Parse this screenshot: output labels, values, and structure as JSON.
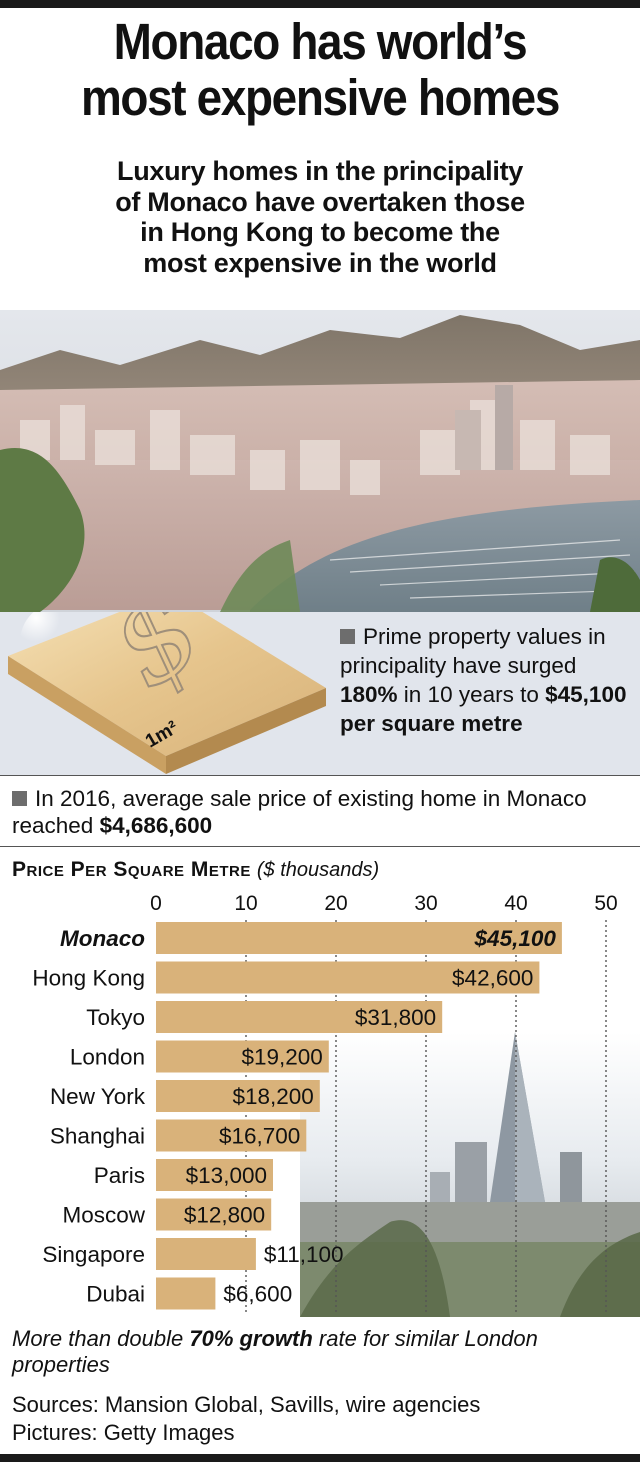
{
  "headline": {
    "title_line1": "Monaco has world’s",
    "title_line2": "most expensive homes",
    "subtitle_line1": "Luxury homes in the principality",
    "subtitle_line2": "of Monaco have overtaken those",
    "subtitle_line3": "in Hong Kong to become the",
    "subtitle_line4": "most expensive in the world"
  },
  "graphic": {
    "tile_label": "1m²",
    "symbol": "$"
  },
  "facts": {
    "fact1_a": "Prime property values in principality have surged ",
    "fact1_b": "180%",
    "fact1_c": " in 10 years to ",
    "fact1_d": "$45,100 per square metre",
    "fact2_a": "In 2016, average sale price of existing home in Monaco reached ",
    "fact2_b": "$4,686,600"
  },
  "chart_data": {
    "type": "bar",
    "orientation": "horizontal",
    "title": "Price Per Square Metre",
    "unit_label": "($ thousands)",
    "xlim": [
      0,
      50
    ],
    "ticks": [
      0,
      10,
      20,
      30,
      40,
      50
    ],
    "categories": [
      "Monaco",
      "Hong Kong",
      "Tokyo",
      "London",
      "New York",
      "Shanghai",
      "Paris",
      "Moscow",
      "Singapore",
      "Dubai"
    ],
    "values": [
      45.1,
      42.6,
      31.8,
      19.2,
      18.2,
      16.7,
      13.0,
      12.8,
      11.1,
      6.6
    ],
    "labels": [
      "$45,100",
      "$42,600",
      "$31,800",
      "$19,200",
      "$18,200",
      "$16,700",
      "$13,000",
      "$12,800",
      "$11,100",
      "$6,600"
    ],
    "bar_color": "#d9b27a",
    "highlight": "Monaco"
  },
  "footer": {
    "note_a": "More than double ",
    "note_b": "70% growth",
    "note_c": " rate for similar London properties",
    "sources": "Sources: Mansion Global, Savills, wire agencies",
    "pictures": "Pictures: Getty Images"
  }
}
